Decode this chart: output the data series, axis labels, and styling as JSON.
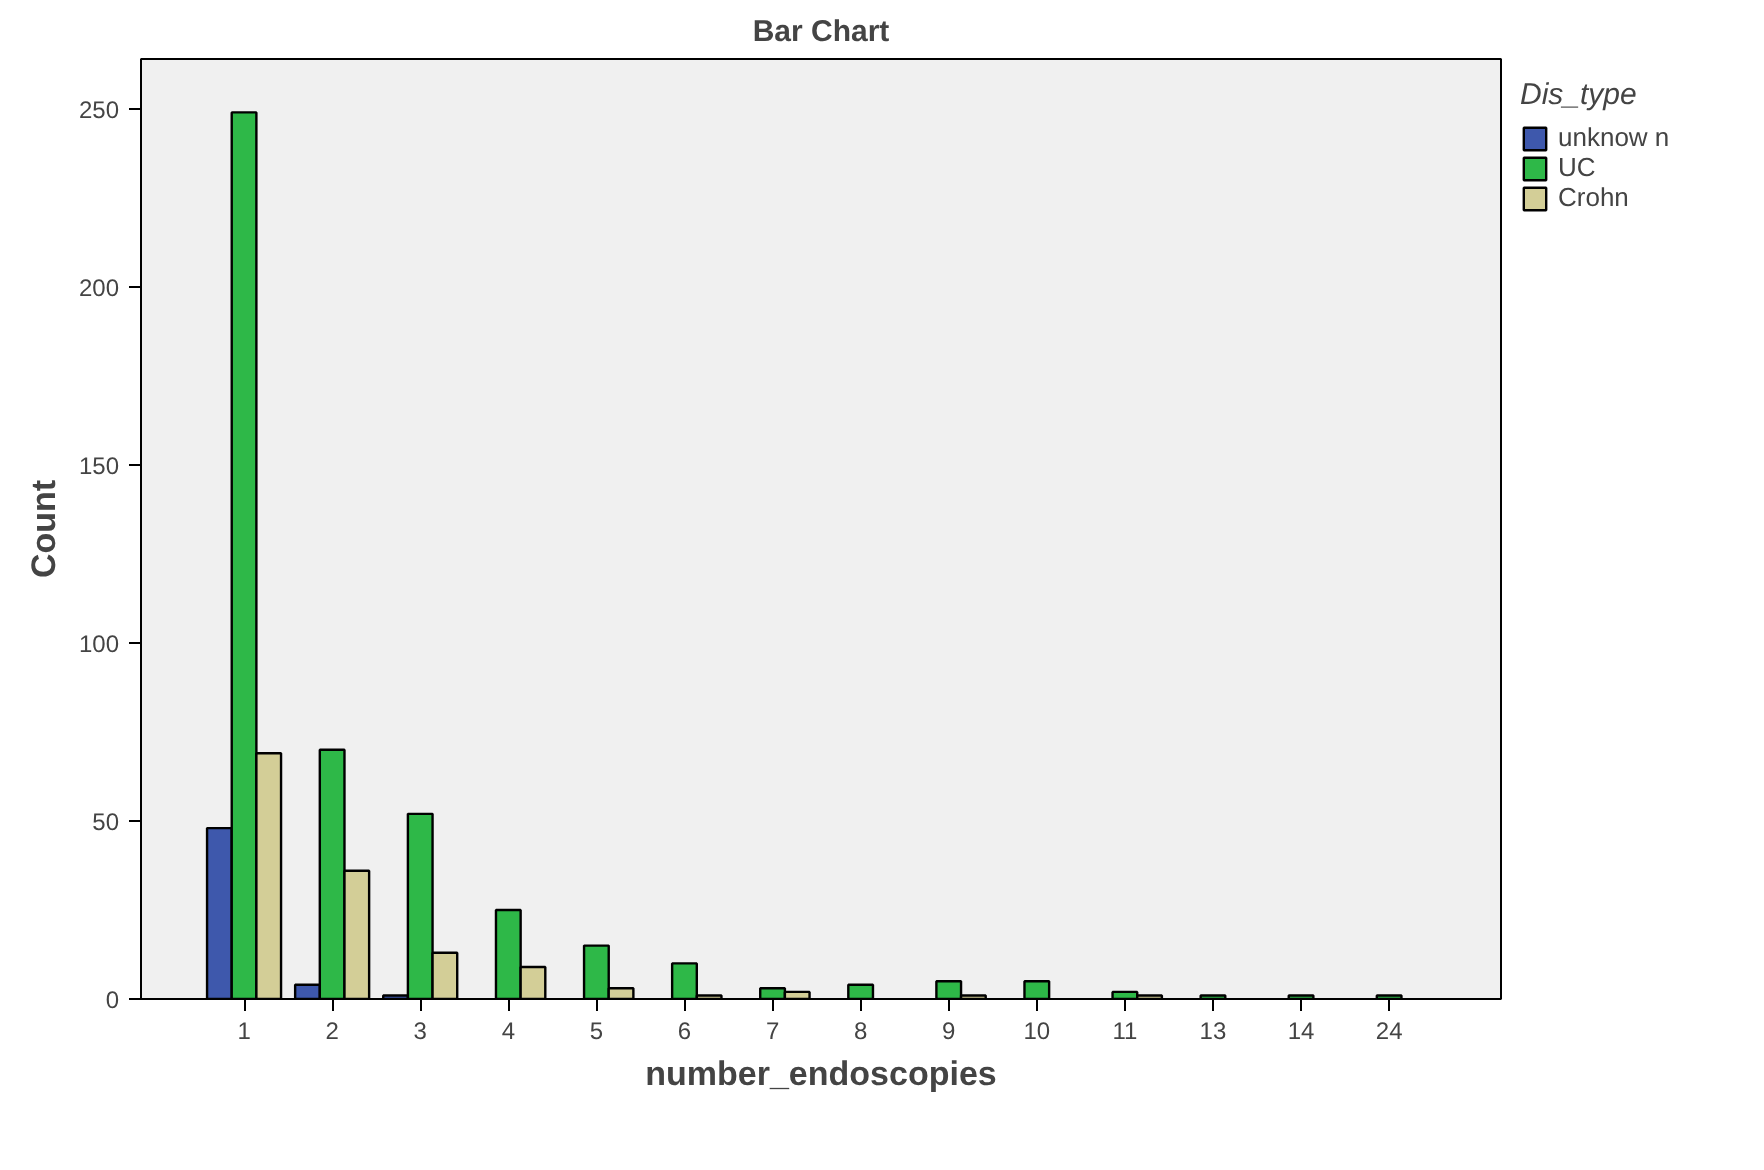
{
  "chart_data": {
    "type": "bar",
    "title": "Bar Chart",
    "xlabel": "number_endoscopies",
    "ylabel": "Count",
    "legend_title": "Dis_type",
    "categories": [
      "1",
      "2",
      "3",
      "4",
      "5",
      "6",
      "7",
      "8",
      "9",
      "10",
      "11",
      "13",
      "14",
      "24"
    ],
    "series": [
      {
        "name": "unknow n",
        "color": "#3e58ac",
        "values": [
          48,
          4,
          1,
          null,
          null,
          null,
          null,
          null,
          null,
          null,
          null,
          null,
          null,
          null
        ]
      },
      {
        "name": "UC",
        "color": "#2eb848",
        "values": [
          249,
          70,
          52,
          25,
          15,
          10,
          3,
          4,
          5,
          5,
          2,
          1,
          1,
          1
        ]
      },
      {
        "name": "Crohn",
        "color": "#d3ce97",
        "values": [
          69,
          36,
          13,
          9,
          3,
          1,
          2,
          null,
          1,
          null,
          1,
          null,
          null,
          null
        ]
      }
    ],
    "ylim": [
      0,
      264
    ],
    "yticks": [
      0,
      50,
      100,
      150,
      200,
      250
    ],
    "grid": false,
    "legend": "right"
  }
}
